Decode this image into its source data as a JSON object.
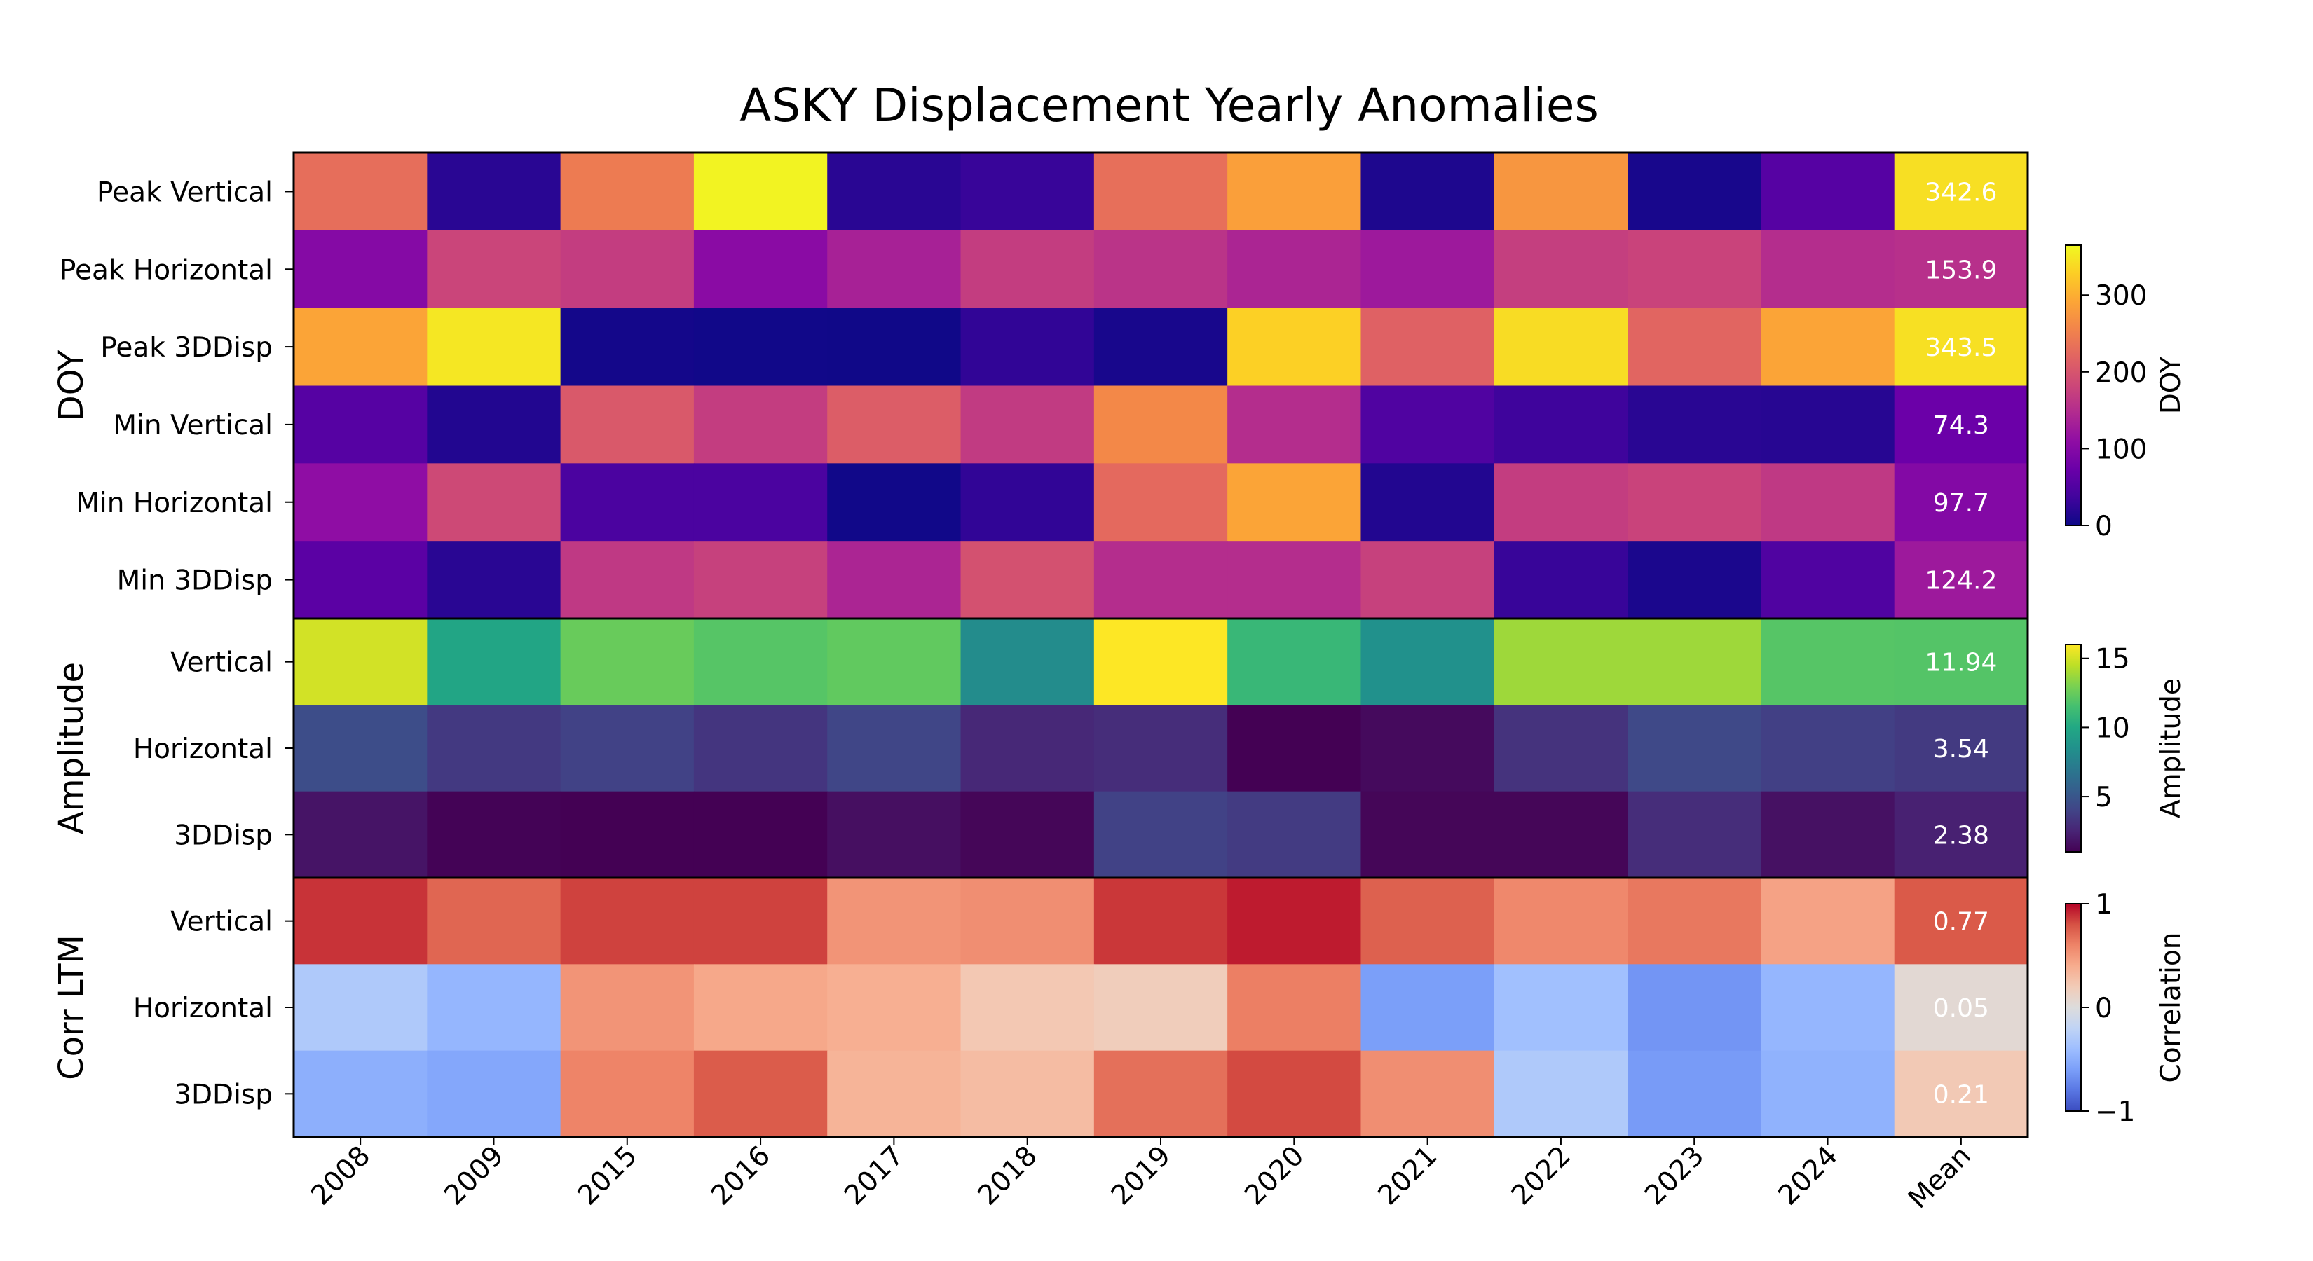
{
  "chart_data": {
    "type": "heatmap",
    "title": "ASKY Displacement Yearly Anomalies",
    "columns": [
      "2008",
      "2009",
      "2015",
      "2016",
      "2017",
      "2018",
      "2019",
      "2020",
      "2021",
      "2022",
      "2023",
      "2024",
      "Mean"
    ],
    "groups": [
      {
        "label": "DOY",
        "colormap": "plasma",
        "colorbar_label": "DOY",
        "range": [
          0,
          365
        ],
        "ticks": [
          "0",
          "100",
          "200",
          "300"
        ],
        "tick_values": [
          0,
          100,
          200,
          300
        ],
        "rows": [
          {
            "label": "Peak Vertical",
            "values": [
              230,
              20,
              245,
              360,
              20,
              30,
              232,
              285,
              12,
              275,
              8,
              55,
              342.6
            ],
            "mean_label": "342.6"
          },
          {
            "label": "Peak Horizontal",
            "values": [
              100,
              180,
              170,
              105,
              135,
              170,
              158,
              140,
              125,
              172,
              178,
              150,
              153.9
            ],
            "mean_label": "153.9"
          },
          {
            "label": "Peak 3DDisp",
            "values": [
              290,
              350,
              5,
              3,
              2,
              25,
              8,
              330,
              215,
              340,
              220,
              290,
              343.5
            ],
            "mean_label": "343.5"
          },
          {
            "label": "Min Vertical",
            "values": [
              55,
              15,
              205,
              170,
              210,
              168,
              260,
              150,
              50,
              35,
              20,
              18,
              74.3
            ],
            "mean_label": "74.3"
          },
          {
            "label": "Min Horizontal",
            "values": [
              110,
              185,
              45,
              45,
              3,
              25,
              225,
              290,
              15,
              170,
              178,
              165,
              97.7
            ],
            "mean_label": "97.7"
          },
          {
            "label": "Min 3DDisp",
            "values": [
              60,
              20,
              165,
              175,
              140,
              195,
              150,
              150,
              175,
              30,
              10,
              50,
              124.2
            ],
            "mean_label": "124.2"
          }
        ]
      },
      {
        "label": "Amplitude",
        "colormap": "viridis",
        "colorbar_label": "Amplitude",
        "range": [
          1,
          16
        ],
        "ticks": [
          "5",
          "10",
          "15"
        ],
        "tick_values": [
          5,
          10,
          15
        ],
        "rows": [
          {
            "label": "Vertical",
            "values": [
              15.0,
              9.8,
              12.5,
              12.0,
              12.3,
              8.2,
              16.0,
              11.0,
              8.5,
              13.8,
              13.8,
              12.0,
              11.94
            ],
            "mean_label": "11.94"
          },
          {
            "label": "Horizontal",
            "values": [
              4.5,
              3.5,
              3.9,
              3.3,
              4.1,
              2.7,
              2.9,
              1.0,
              1.4,
              3.2,
              4.3,
              3.8,
              3.54
            ],
            "mean_label": "3.54"
          },
          {
            "label": "3DDisp",
            "values": [
              1.8,
              1.1,
              1.0,
              1.0,
              1.6,
              1.2,
              3.9,
              3.6,
              1.2,
              1.2,
              2.9,
              1.7,
              2.38
            ],
            "mean_label": "2.38"
          }
        ]
      },
      {
        "label": "Corr LTM",
        "colormap": "coolwarm",
        "colorbar_label": "Correlation",
        "range": [
          -1,
          1
        ],
        "ticks": [
          "−1",
          "0",
          "1"
        ],
        "tick_values": [
          -1,
          0,
          1
        ],
        "rows": [
          {
            "label": "Vertical",
            "values": [
              0.88,
              0.72,
              0.84,
              0.84,
              0.52,
              0.55,
              0.87,
              0.94,
              0.74,
              0.58,
              0.65,
              0.45,
              0.77
            ],
            "mean_label": "0.77"
          },
          {
            "label": "Horizontal",
            "values": [
              -0.3,
              -0.45,
              0.52,
              0.42,
              0.38,
              0.22,
              0.18,
              0.62,
              -0.6,
              -0.38,
              -0.65,
              -0.45,
              0.05
            ],
            "mean_label": "0.05"
          },
          {
            "label": "3DDisp",
            "values": [
              -0.5,
              -0.55,
              0.6,
              0.76,
              0.35,
              0.3,
              0.68,
              0.82,
              0.55,
              -0.3,
              -0.62,
              -0.48,
              0.21
            ],
            "mean_label": "0.21"
          }
        ]
      }
    ]
  }
}
